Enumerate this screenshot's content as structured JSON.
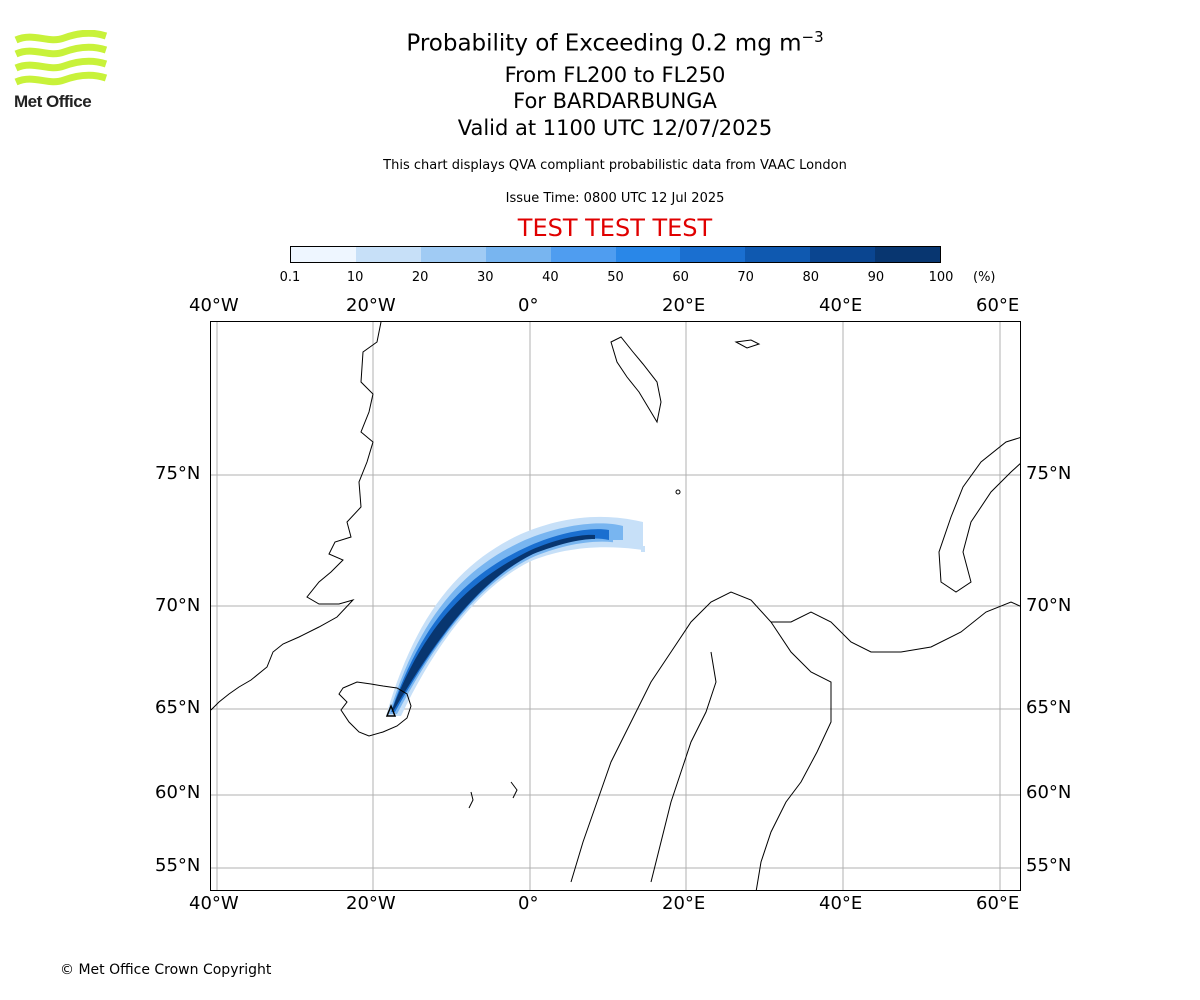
{
  "logo": {
    "text": "Met Office",
    "color": "#c8f23a"
  },
  "header": {
    "title": "Probability of Exceeding 0.2 mg m",
    "title_exponent": "−3",
    "flight_levels": "From FL200 to FL250",
    "volcano": "For BARDARBUNGA",
    "valid": "Valid at 1100 UTC 12/07/2025",
    "note": "This chart displays QVA compliant probabilistic data from VAAC London",
    "issue_time": "Issue Time: 0800 UTC 12 Jul 2025",
    "test_banner": "TEST TEST TEST",
    "test_color": "#e00000"
  },
  "colorbar": {
    "ticks": [
      "0.1",
      "10",
      "20",
      "30",
      "40",
      "50",
      "60",
      "70",
      "80",
      "90",
      "100"
    ],
    "unit": "(%)",
    "colors": [
      "#eef6ff",
      "#c7e0f8",
      "#a0cbf4",
      "#78b5f0",
      "#4f9df0",
      "#2987e8",
      "#1a6fd0",
      "#0f59b0",
      "#0a4590",
      "#083670"
    ]
  },
  "map": {
    "lon_labels": [
      "40°W",
      "20°W",
      "0°",
      "20°E",
      "40°E",
      "60°E"
    ],
    "lat_labels": [
      "75°N",
      "70°N",
      "65°N",
      "60°N",
      "55°N"
    ],
    "grid": true,
    "plume_source": "BARDARBUNGA"
  },
  "footer": {
    "copyright": "© Met Office Crown Copyright"
  }
}
